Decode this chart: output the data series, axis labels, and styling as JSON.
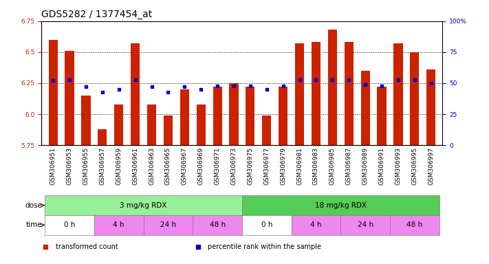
{
  "title": "GDS5282 / 1377454_at",
  "samples": [
    "GSM306951",
    "GSM306953",
    "GSM306955",
    "GSM306957",
    "GSM306959",
    "GSM306961",
    "GSM306963",
    "GSM306965",
    "GSM306967",
    "GSM306969",
    "GSM306971",
    "GSM306973",
    "GSM306975",
    "GSM306977",
    "GSM306979",
    "GSM306981",
    "GSM306983",
    "GSM306985",
    "GSM306987",
    "GSM306989",
    "GSM306991",
    "GSM306993",
    "GSM306995",
    "GSM306997"
  ],
  "bar_values": [
    6.6,
    6.51,
    6.15,
    5.88,
    6.08,
    6.57,
    6.08,
    5.99,
    6.2,
    6.08,
    6.22,
    6.25,
    6.22,
    5.99,
    6.22,
    6.57,
    6.58,
    6.68,
    6.58,
    6.35,
    6.22,
    6.57,
    6.5,
    6.36
  ],
  "dot_percentiles": [
    52,
    53,
    47,
    43,
    45,
    53,
    47,
    43,
    47,
    45,
    48,
    48,
    48,
    45,
    48,
    53,
    53,
    53,
    53,
    49,
    48,
    53,
    53,
    50
  ],
  "ylim": [
    5.75,
    6.75
  ],
  "yticks": [
    5.75,
    6.0,
    6.25,
    6.5,
    6.75
  ],
  "right_yticks": [
    0,
    25,
    50,
    75,
    100
  ],
  "right_ytick_labels": [
    "0",
    "25",
    "50",
    "75",
    "100%"
  ],
  "bar_color": "#CC2200",
  "dot_color": "#0000CC",
  "bg_color": "#FFFFFF",
  "dose_groups": [
    {
      "label": "3 mg/kg RDX",
      "start": 0,
      "end": 12,
      "color": "#99EE99"
    },
    {
      "label": "18 mg/kg RDX",
      "start": 12,
      "end": 24,
      "color": "#55CC55"
    }
  ],
  "time_groups": [
    {
      "label": "0 h",
      "start": 0,
      "end": 3,
      "color": "#FFFFFF"
    },
    {
      "label": "4 h",
      "start": 3,
      "end": 6,
      "color": "#EE88EE"
    },
    {
      "label": "24 h",
      "start": 6,
      "end": 9,
      "color": "#EE88EE"
    },
    {
      "label": "48 h",
      "start": 9,
      "end": 12,
      "color": "#EE88EE"
    },
    {
      "label": "0 h",
      "start": 12,
      "end": 15,
      "color": "#FFFFFF"
    },
    {
      "label": "4 h",
      "start": 15,
      "end": 18,
      "color": "#EE88EE"
    },
    {
      "label": "24 h",
      "start": 18,
      "end": 21,
      "color": "#EE88EE"
    },
    {
      "label": "48 h",
      "start": 21,
      "end": 24,
      "color": "#EE88EE"
    }
  ],
  "legend_items": [
    {
      "label": "transformed count",
      "color": "#CC2200",
      "marker": "s"
    },
    {
      "label": "percentile rank within the sample",
      "color": "#0000CC",
      "marker": "s"
    }
  ],
  "axis_color_left": "#CC2200",
  "axis_color_right": "#0000CC",
  "title_fontsize": 10,
  "tick_fontsize": 6.5,
  "label_fontsize": 7.5,
  "row_label_fontsize": 7.5
}
